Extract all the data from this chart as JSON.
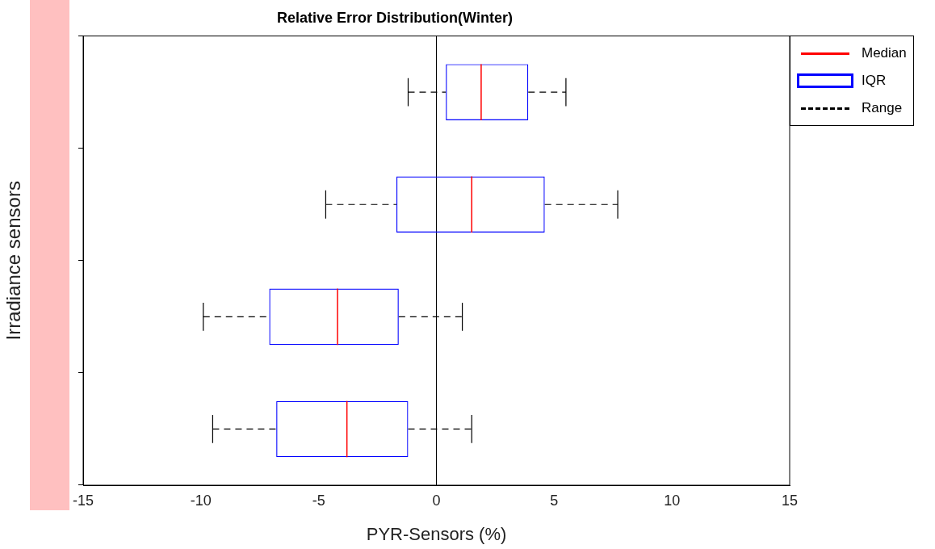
{
  "chart_data": {
    "type": "box",
    "orientation": "horizontal",
    "title": "Relative Error Distribution(Winter)",
    "xlabel": "PYR-Sensors (%)",
    "ylabel": "Irradiance sensors",
    "categories": [
      null,
      null,
      null,
      null
    ],
    "series": [
      {
        "name": "Median",
        "color": "#ff0000",
        "values": [
          null,
          null,
          null,
          null
        ]
      },
      {
        "name": "IQR",
        "color": "#0000ff",
        "boxes": [
          {
            "low": -1.2,
            "q1": 0.4,
            "median": 1.9,
            "q3": 3.9,
            "high": 5.5
          },
          {
            "low": -4.7,
            "q1": -1.7,
            "median": 1.5,
            "q3": 4.6,
            "high": 7.7
          },
          {
            "low": -9.9,
            "q1": -7.1,
            "median": -4.2,
            "q3": -1.6,
            "high": 1.1
          },
          {
            "low": -9.5,
            "q1": -6.8,
            "median": -3.8,
            "q3": -1.2,
            "high": 1.5
          }
        ]
      },
      {
        "name": "Range",
        "color": "#000000",
        "line_style": "dashed",
        "values": [
          null,
          null,
          null,
          null
        ]
      }
    ],
    "xlim": [
      -15,
      15
    ],
    "xticks": [
      -15,
      -10,
      -5,
      0,
      5,
      10,
      15
    ],
    "ref_lines": [
      {
        "axis": "x",
        "value": 0,
        "color": "#000000"
      }
    ],
    "legend": "top right"
  }
}
